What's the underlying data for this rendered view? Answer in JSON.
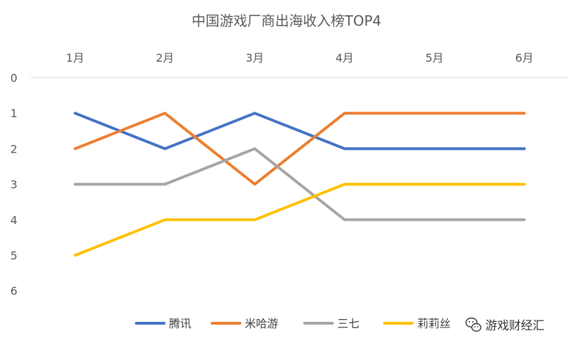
{
  "chart_data": {
    "type": "line",
    "title": "中国游戏厂商出海收入榜TOP4",
    "categories": [
      "1月",
      "2月",
      "3月",
      "4月",
      "5月",
      "6月"
    ],
    "y_ticks": [
      "0",
      "1",
      "2",
      "3",
      "4",
      "5",
      "6"
    ],
    "ylim": [
      0,
      6
    ],
    "y_inverted": true,
    "x_axis_position": "top",
    "xlabel": "",
    "ylabel": "",
    "grid": false,
    "legend_position": "bottom",
    "series": [
      {
        "name": "腾讯",
        "color": "#4472C4",
        "values": [
          1,
          2,
          1,
          2,
          2,
          2
        ]
      },
      {
        "name": "米哈游",
        "color": "#ED7D31",
        "values": [
          2,
          1,
          3,
          1,
          1,
          1
        ]
      },
      {
        "name": "三七",
        "color": "#A5A5A5",
        "values": [
          3,
          3,
          2,
          4,
          4,
          4
        ]
      },
      {
        "name": "莉莉丝",
        "color": "#FFC000",
        "values": [
          5,
          4,
          4,
          3,
          3,
          3
        ]
      }
    ]
  },
  "watermark": {
    "text": "游戏财经汇",
    "icon": "wechat-icon"
  }
}
